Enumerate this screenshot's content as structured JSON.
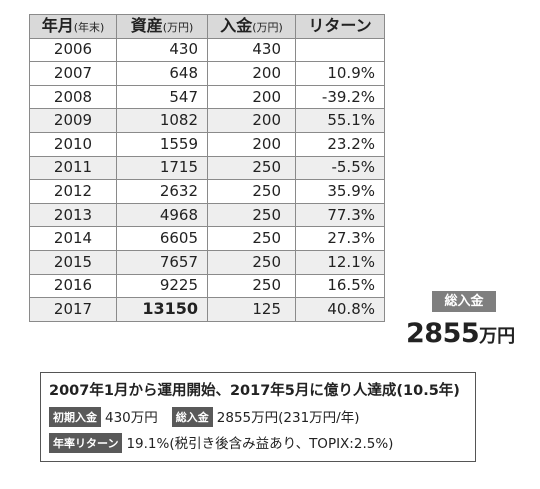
{
  "table": {
    "headers": [
      {
        "label": "年月",
        "unit": "(年末)"
      },
      {
        "label": "資産",
        "unit": "(万円)"
      },
      {
        "label": "入金",
        "unit": "(万円)"
      },
      {
        "label": "リターン",
        "unit": ""
      }
    ],
    "rows": [
      {
        "year": "2006",
        "assets": "430",
        "deposit": "430",
        "ret": ""
      },
      {
        "year": "2007",
        "assets": "648",
        "deposit": "200",
        "ret": "10.9%"
      },
      {
        "year": "2008",
        "assets": "547",
        "deposit": "200",
        "ret": "-39.2%"
      },
      {
        "year": "2009",
        "assets": "1082",
        "deposit": "200",
        "ret": "55.1%"
      },
      {
        "year": "2010",
        "assets": "1559",
        "deposit": "200",
        "ret": "23.2%"
      },
      {
        "year": "2011",
        "assets": "1715",
        "deposit": "250",
        "ret": "-5.5%"
      },
      {
        "year": "2012",
        "assets": "2632",
        "deposit": "250",
        "ret": "35.9%"
      },
      {
        "year": "2013",
        "assets": "4968",
        "deposit": "250",
        "ret": "77.3%"
      },
      {
        "year": "2014",
        "assets": "6605",
        "deposit": "250",
        "ret": "27.3%"
      },
      {
        "year": "2015",
        "assets": "7657",
        "deposit": "250",
        "ret": "12.1%"
      },
      {
        "year": "2016",
        "assets": "9225",
        "deposit": "250",
        "ret": "16.5%"
      },
      {
        "year": "2017",
        "assets": "13150",
        "deposit": "125",
        "ret": "40.8%"
      }
    ]
  },
  "total": {
    "tag": "総入金",
    "value": "2855",
    "unit": "万円"
  },
  "summary": {
    "title": "2007年1月から運用開始、2017年5月に億り人達成(10.5年)",
    "initial_tag": "初期入金",
    "initial_value": "430万円",
    "total_tag": "総入金",
    "total_value": "2855万円(231万円/年)",
    "return_tag": "年率リターン",
    "return_value": "19.1%(税引き後含み益あり、TOPIX:2.5%)"
  },
  "colors": {
    "header_bg": "#d9d9d9",
    "row_shade": "#eeeeee",
    "tag_bg": "#595959",
    "total_tag_bg": "#7f7f7f"
  }
}
